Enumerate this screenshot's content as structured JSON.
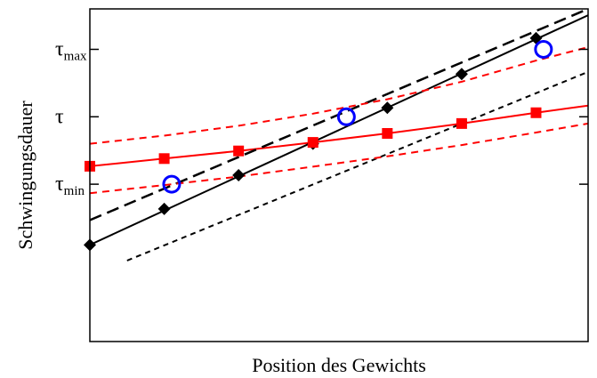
{
  "chart_data": {
    "type": "line",
    "title": "",
    "xlabel": "Position des Gewichts",
    "ylabel": "Schwingungsdauer",
    "xlim": [
      0,
      6.7
    ],
    "ylim": [
      0,
      7.4
    ],
    "grid": false,
    "legend": "none",
    "x_ticks": [],
    "y_ticks": [
      {
        "value": 3.5,
        "base": "τ",
        "sub": "min"
      },
      {
        "value": 5.0,
        "base": "τ",
        "sub": ""
      },
      {
        "value": 6.5,
        "base": "τ",
        "sub": "max"
      }
    ],
    "series": [
      {
        "color": "#000000",
        "style": "solid",
        "marker": "diamond",
        "x": [
          0,
          1,
          2,
          3,
          4,
          5,
          6
        ],
        "y": [
          2.15,
          2.95,
          3.7,
          4.4,
          5.2,
          5.95,
          6.75
        ],
        "line": [
          [
            0,
            2.15
          ],
          [
            6.7,
            7.26
          ]
        ]
      },
      {
        "color": "#ff0000",
        "style": "solid",
        "marker": "square",
        "x": [
          0,
          1,
          2,
          3,
          4,
          5,
          6
        ],
        "y": [
          3.9,
          4.07,
          4.24,
          4.43,
          4.63,
          4.85,
          5.09
        ],
        "line": [
          [
            0,
            3.9
          ],
          [
            1,
            4.07
          ],
          [
            2,
            4.24
          ],
          [
            3,
            4.43
          ],
          [
            4,
            4.63
          ],
          [
            5,
            4.85
          ],
          [
            6,
            5.09
          ],
          [
            6.7,
            5.25
          ]
        ]
      },
      {
        "color": "#000000",
        "style": "dashed-long",
        "line": [
          [
            0,
            2.7
          ],
          [
            6.7,
            7.4
          ]
        ]
      },
      {
        "color": "#000000",
        "style": "dashed-short",
        "line": [
          [
            0.5,
            1.8
          ],
          [
            6.7,
            6.0
          ]
        ]
      },
      {
        "color": "#ff0000",
        "style": "dashed",
        "line": [
          [
            0,
            4.4
          ],
          [
            1,
            4.58
          ],
          [
            2,
            4.8
          ],
          [
            3,
            5.07
          ],
          [
            4,
            5.39
          ],
          [
            5,
            5.78
          ],
          [
            6,
            6.25
          ],
          [
            6.7,
            6.55
          ]
        ]
      },
      {
        "color": "#ff0000",
        "style": "dashed",
        "line": [
          [
            0,
            3.3
          ],
          [
            1,
            3.48
          ],
          [
            2,
            3.67
          ],
          [
            3,
            3.89
          ],
          [
            4,
            4.12
          ],
          [
            5,
            4.37
          ],
          [
            6,
            4.65
          ],
          [
            6.7,
            4.85
          ]
        ]
      },
      {
        "color": "#0000ff",
        "style": "none",
        "marker": "open-circle",
        "x": [
          1.1,
          3.45,
          6.1
        ],
        "y": [
          3.5,
          5.0,
          6.5
        ]
      }
    ]
  }
}
